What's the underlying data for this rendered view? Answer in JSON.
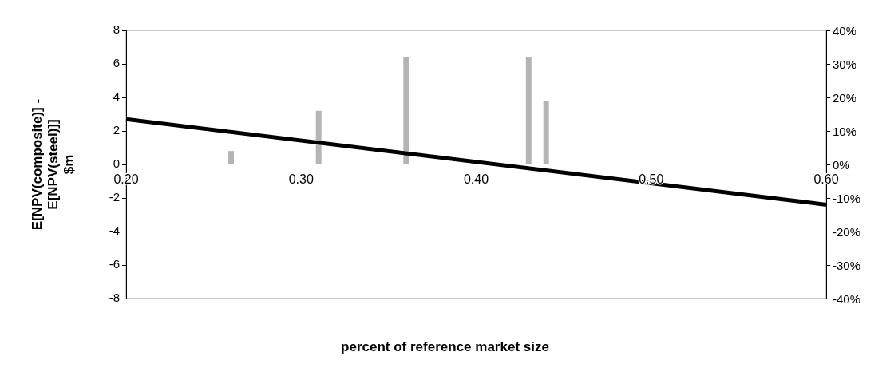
{
  "chart_data": {
    "type": "bar",
    "xlabel": "percent of reference market size",
    "ylabel": "E[NPV(composite)] -\nE[NPV(steel)]]\n$m",
    "xlim": [
      0.2,
      0.6
    ],
    "xticks": [
      {
        "value": 0.2,
        "label": "0.20"
      },
      {
        "value": 0.3,
        "label": "0.30"
      },
      {
        "value": 0.4,
        "label": "0.40"
      },
      {
        "value": 0.5,
        "label": "0.50"
      },
      {
        "value": 0.6,
        "label": "0.60"
      }
    ],
    "ylim": [
      -8,
      8
    ],
    "yticks": [
      -8,
      -6,
      -4,
      -2,
      0,
      2,
      4,
      6,
      8
    ],
    "y2lim": [
      -40,
      40
    ],
    "y2ticks": [
      {
        "value": -40,
        "label": "-40%"
      },
      {
        "value": -30,
        "label": "-30%"
      },
      {
        "value": -20,
        "label": "-20%"
      },
      {
        "value": -10,
        "label": "-10%"
      },
      {
        "value": 0,
        "label": "0%"
      },
      {
        "value": 10,
        "label": "10%"
      },
      {
        "value": 20,
        "label": "20%"
      },
      {
        "value": 30,
        "label": "30%"
      },
      {
        "value": 40,
        "label": "40%"
      }
    ],
    "grid": false,
    "series": [
      {
        "axis": "y2",
        "color": "#b4b4b4",
        "x": [
          0.26,
          0.31,
          0.36,
          0.43,
          0.44
        ],
        "values": [
          4,
          16,
          32,
          32,
          19
        ]
      },
      {
        "type": "line",
        "axis": "y",
        "color": "#000000",
        "line_style": "solid",
        "marker": "none",
        "x": [
          0.2,
          0.6
        ],
        "values": [
          2.7,
          -2.4
        ]
      }
    ]
  }
}
